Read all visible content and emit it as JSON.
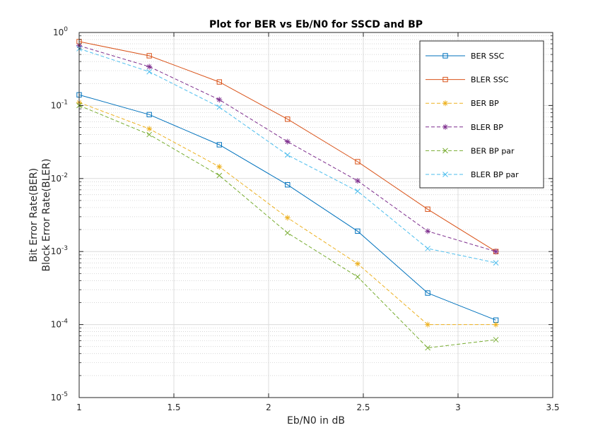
{
  "chart_data": {
    "type": "line",
    "title": "Plot for BER vs Eb/N0 for SSCD and BP",
    "xlabel": "Eb/N0 in dB",
    "ylabel_lines": [
      "Bit Error Rate(BER)",
      "Block Error Rate(BLER)"
    ],
    "xlim": [
      1,
      3.5
    ],
    "ylim": [
      1e-05,
      1
    ],
    "yscale": "log",
    "grid": true,
    "minor_grid": true,
    "legend_position": "top-right",
    "x_ticks": [
      "1",
      "1.5",
      "2",
      "2.5",
      "3",
      "3.5"
    ],
    "y_ticks": [
      {
        "base": "10",
        "exp": "-5"
      },
      {
        "base": "10",
        "exp": "-4"
      },
      {
        "base": "10",
        "exp": "-3"
      },
      {
        "base": "10",
        "exp": "-2"
      },
      {
        "base": "10",
        "exp": "-1"
      },
      {
        "base": "10",
        "exp": "0"
      }
    ],
    "x": [
      1,
      1.37,
      1.74,
      2.1,
      2.47,
      2.84,
      3.2
    ],
    "series": [
      {
        "name": "BER SSC",
        "color": "#0072BD",
        "dash": false,
        "marker": "square",
        "values": [
          0.14,
          0.075,
          0.029,
          0.0082,
          0.0019,
          0.00027,
          0.000115
        ]
      },
      {
        "name": "BLER SSC",
        "color": "#D95319",
        "dash": false,
        "marker": "square",
        "values": [
          0.75,
          0.48,
          0.21,
          0.065,
          0.017,
          0.0038,
          0.001
        ]
      },
      {
        "name": "BER BP",
        "color": "#EDB120",
        "dash": true,
        "marker": "star",
        "values": [
          0.11,
          0.048,
          0.0145,
          0.0029,
          0.00068,
          0.0001,
          0.0001
        ]
      },
      {
        "name": "BLER BP",
        "color": "#7E2F8E",
        "dash": true,
        "marker": "star",
        "values": [
          0.66,
          0.34,
          0.12,
          0.032,
          0.0093,
          0.0019,
          0.001
        ]
      },
      {
        "name": "BER BP par",
        "color": "#77AC30",
        "dash": true,
        "marker": "x",
        "values": [
          0.1,
          0.04,
          0.011,
          0.0018,
          0.00045,
          4.8e-05,
          6.2e-05
        ]
      },
      {
        "name": "BLER BP par",
        "color": "#4DBEEE",
        "dash": true,
        "marker": "x",
        "values": [
          0.6,
          0.29,
          0.095,
          0.021,
          0.0067,
          0.0011,
          0.0007
        ]
      }
    ]
  }
}
